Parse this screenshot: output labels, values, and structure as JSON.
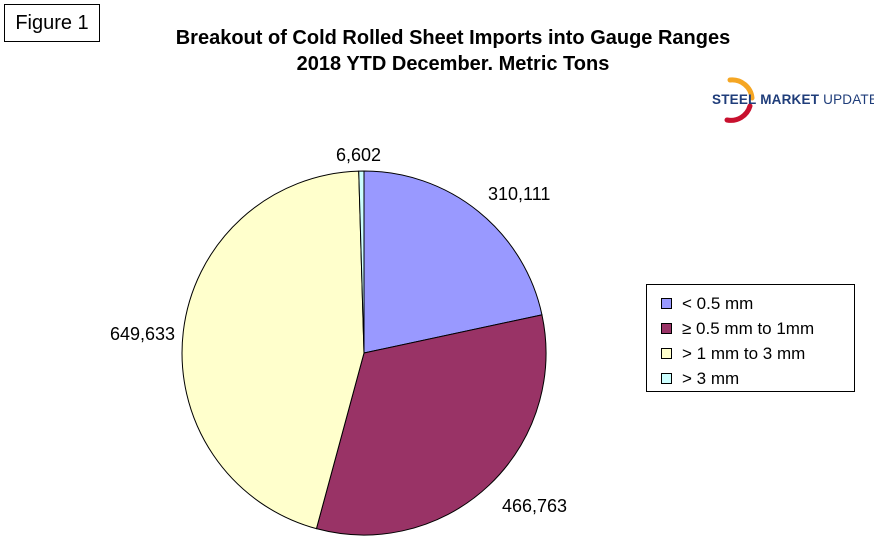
{
  "figure_label": "Figure 1",
  "logo": {
    "bold_text": "STEEL MARKET",
    "normal_text": " UPDATE",
    "swoosh_colors": [
      "#f5a623",
      "#e8731c",
      "#c8102e"
    ]
  },
  "chart_data": {
    "type": "pie",
    "title": "Breakout of Cold Rolled Sheet Imports into Gauge Ranges",
    "subtitle": "2018 YTD December. Metric Tons",
    "legend_position": "right",
    "slices": [
      {
        "name": "< 0.5 mm",
        "value": 310111,
        "label": "310,111",
        "color": "#9999ff"
      },
      {
        "name": "≥ 0.5 mm to 1mm",
        "value": 466763,
        "label": "466,763",
        "color": "#993366"
      },
      {
        "name": "> 1 mm to 3 mm",
        "value": 649633,
        "label": "649,633",
        "color": "#ffffcc"
      },
      {
        "name": "> 3 mm",
        "value": 6602,
        "label": "6,602",
        "color": "#ccffff"
      }
    ]
  }
}
